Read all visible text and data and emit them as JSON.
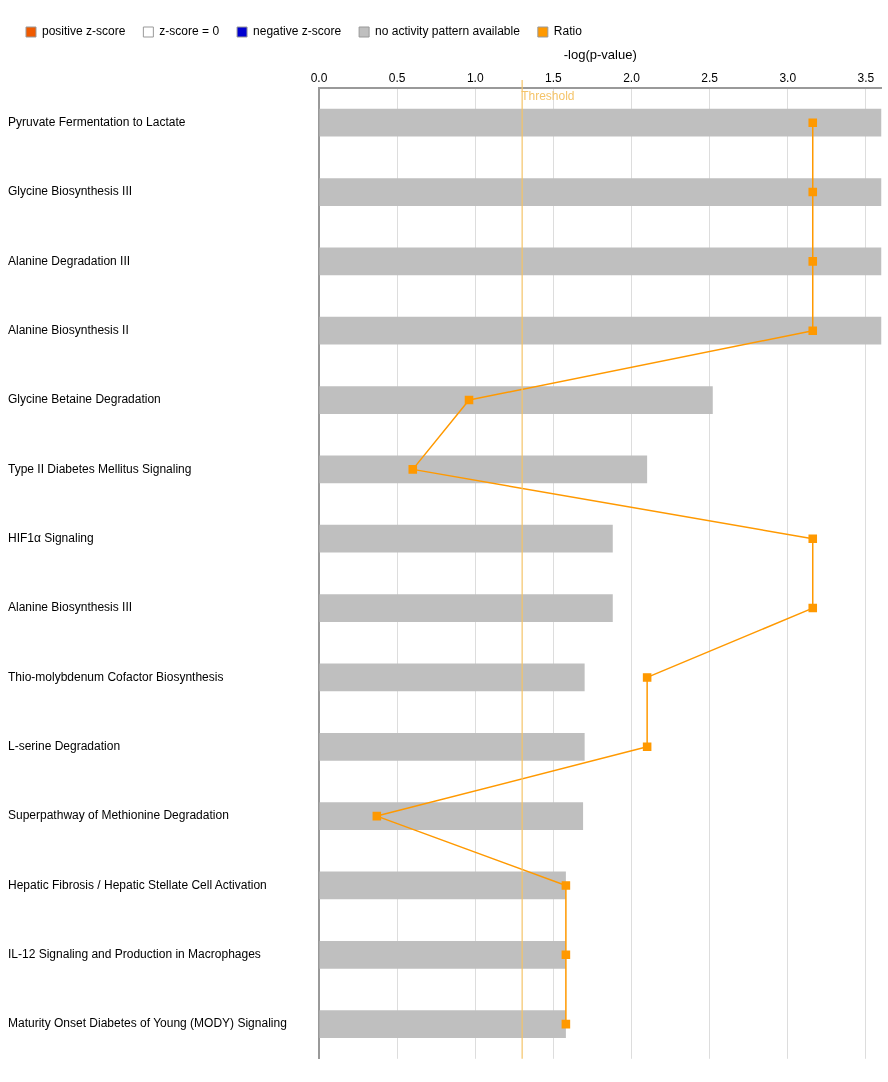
{
  "chart_data": {
    "type": "bar",
    "orientation": "horizontal",
    "xlabel": "-log(p-value)",
    "categories": [
      "Pyruvate Fermentation to Lactate",
      "Glycine Biosynthesis III",
      "Alanine Degradation III",
      "Alanine Biosynthesis II",
      "Glycine Betaine Degradation",
      "Type II Diabetes Mellitus Signaling",
      "HIF1α Signaling",
      "Alanine Biosynthesis III",
      "Thio-molybdenum Cofactor Biosynthesis",
      "L-serine Degradation",
      "Superpathway of Methionine Degradation",
      "Hepatic Fibrosis / Hepatic Stellate Cell Activation",
      "IL-12 Signaling and Production in Macrophages",
      "Maturity Onset Diabetes of Young (MODY) Signaling"
    ],
    "series": [
      {
        "name": "positive z-score",
        "color": "#f05a00",
        "values": [
          null,
          null,
          null,
          null,
          null,
          null,
          null,
          null,
          null,
          null,
          null,
          null,
          null,
          null
        ]
      },
      {
        "name": "z-score = 0",
        "color": "#ffffff",
        "values": [
          null,
          null,
          null,
          null,
          null,
          null,
          null,
          null,
          null,
          null,
          null,
          null,
          null,
          null
        ]
      },
      {
        "name": "negative z-score",
        "color": "#0000d0",
        "values": [
          null,
          null,
          null,
          null,
          null,
          null,
          null,
          null,
          null,
          null,
          null,
          null,
          null,
          null
        ]
      },
      {
        "name": "no activity pattern available",
        "color": "#bfbfbf",
        "values": [
          3.6,
          3.6,
          3.6,
          3.6,
          2.52,
          2.1,
          1.88,
          1.88,
          1.7,
          1.7,
          1.69,
          1.58,
          1.58,
          1.58
        ]
      },
      {
        "name": "Ratio",
        "type": "line",
        "color": "#ff9900",
        "values": [
          3.16,
          3.16,
          3.16,
          3.16,
          0.96,
          0.6,
          3.16,
          3.16,
          2.1,
          2.1,
          0.37,
          1.58,
          1.58,
          1.58
        ]
      }
    ],
    "xlim": [
      0,
      3.6
    ],
    "xticks": [
      {
        "value": 0,
        "label": "0.0"
      },
      {
        "value": 0.5,
        "label": "0.5"
      },
      {
        "value": 1,
        "label": "1.0"
      },
      {
        "value": 1.5,
        "label": "1.5"
      },
      {
        "value": 2,
        "label": "2.0"
      },
      {
        "value": 2.5,
        "label": "2.5"
      },
      {
        "value": 3,
        "label": "3.0"
      },
      {
        "value": 3.5,
        "label": "3.5"
      }
    ],
    "ref_lines": [
      {
        "axis": "x",
        "value": 1.3,
        "label": "Threshold",
        "color": "#f5c469"
      }
    ],
    "grid": "x",
    "legend": "top left",
    "marker": "square"
  }
}
